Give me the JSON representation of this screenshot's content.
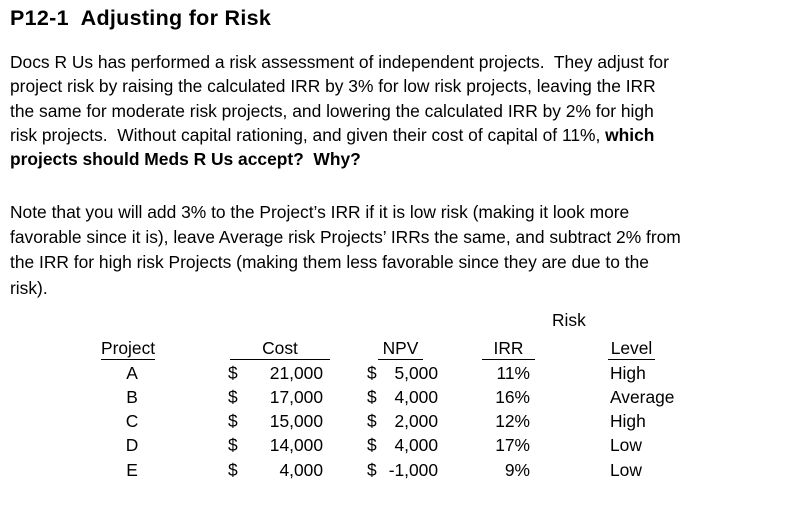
{
  "colors": {
    "text": "#000000",
    "background": "#ffffff"
  },
  "title": "P12-1  Adjusting for Risk",
  "paragraphs": [
    {
      "name": "problem-statement",
      "lines": [
        [
          {
            "t": "Docs R Us has performed a risk assessment of independent projects.  They adjust for",
            "b": false
          }
        ],
        [
          {
            "t": "project risk by raising the calculated IRR by 3% for low risk projects, leaving the IRR",
            "b": false
          }
        ],
        [
          {
            "t": "the same for moderate risk projects, and lowering the calculated IRR by 2% for high",
            "b": false
          }
        ],
        [
          {
            "t": "risk projects.  Without capital rationing, and given their cost of capital of 11%, ",
            "b": false
          },
          {
            "t": "which",
            "b": true
          }
        ],
        [
          {
            "t": "projects should Meds R Us accept?  Why?",
            "b": true
          }
        ]
      ]
    },
    {
      "name": "note-paragraph",
      "lines": [
        [
          {
            "t": "Note that you will add 3% to the Project’s IRR if it is low risk (making it look more",
            "b": false
          }
        ],
        [
          {
            "t": "favorable since it is), leave Average risk Projects’ IRRs the same, and subtract 2% from",
            "b": false
          }
        ],
        [
          {
            "t": "the IRR for high risk Projects (making them less favorable since they are due to the",
            "b": false
          }
        ],
        [
          {
            "t": "risk).",
            "b": false
          }
        ]
      ]
    }
  ],
  "table": {
    "risk_group_label": "Risk",
    "columns": {
      "project": "Project",
      "cost": "Cost",
      "npv": "NPV",
      "irr": "IRR",
      "level": "Level"
    },
    "rows": [
      {
        "project": "A",
        "cost": "$21,000",
        "npv": "$ 5,000",
        "irr": "11%",
        "level": "High"
      },
      {
        "project": "B",
        "cost": "$17,000",
        "npv": "$ 4,000",
        "irr": "16%",
        "level": "Average"
      },
      {
        "project": "C",
        "cost": "$15,000",
        "npv": "$ 2,000",
        "irr": "12%",
        "level": "High"
      },
      {
        "project": "D",
        "cost": "$14,000",
        "npv": "$ 4,000",
        "irr": "17%",
        "level": "Low"
      },
      {
        "project": "E",
        "cost": "$ 4,000",
        "npv": "$ -1,000",
        "irr": "9%",
        "level": "Low"
      }
    ]
  }
}
